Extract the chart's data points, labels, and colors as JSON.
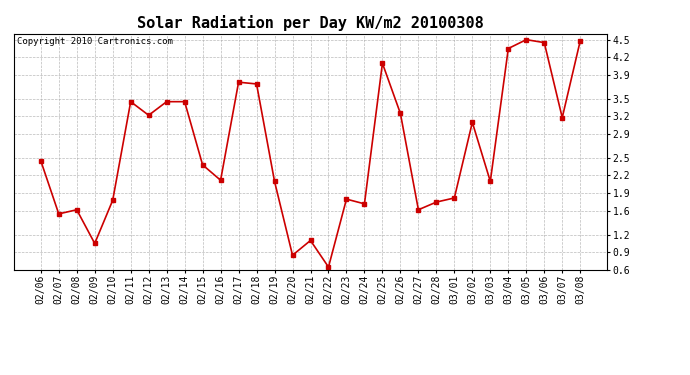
{
  "title": "Solar Radiation per Day KW/m2 20100308",
  "copyright_text": "Copyright 2010 Cartronics.com",
  "dates": [
    "02/06",
    "02/07",
    "02/08",
    "02/09",
    "02/10",
    "02/11",
    "02/12",
    "02/13",
    "02/14",
    "02/15",
    "02/16",
    "02/17",
    "02/18",
    "02/19",
    "02/20",
    "02/21",
    "02/22",
    "02/23",
    "02/24",
    "02/25",
    "02/26",
    "02/27",
    "02/28",
    "03/01",
    "03/02",
    "03/03",
    "03/04",
    "03/05",
    "03/06",
    "03/07",
    "03/08"
  ],
  "values": [
    2.45,
    1.55,
    1.62,
    1.05,
    1.78,
    3.45,
    3.22,
    3.45,
    3.45,
    2.38,
    2.12,
    3.78,
    3.75,
    2.1,
    0.85,
    1.1,
    0.65,
    1.8,
    1.72,
    4.1,
    3.25,
    1.62,
    1.75,
    1.82,
    3.1,
    2.1,
    4.35,
    4.5,
    4.45,
    3.18,
    4.48
  ],
  "line_color": "#cc0000",
  "marker": "s",
  "marker_size": 2.5,
  "line_width": 1.2,
  "ylim": [
    0.6,
    4.6
  ],
  "yticks": [
    0.6,
    0.9,
    1.2,
    1.6,
    1.9,
    2.2,
    2.5,
    2.9,
    3.2,
    3.5,
    3.9,
    4.2,
    4.5
  ],
  "bg_color": "#ffffff",
  "grid_color": "#aaaaaa",
  "title_fontsize": 11,
  "tick_fontsize": 7,
  "copyright_fontsize": 6.5
}
